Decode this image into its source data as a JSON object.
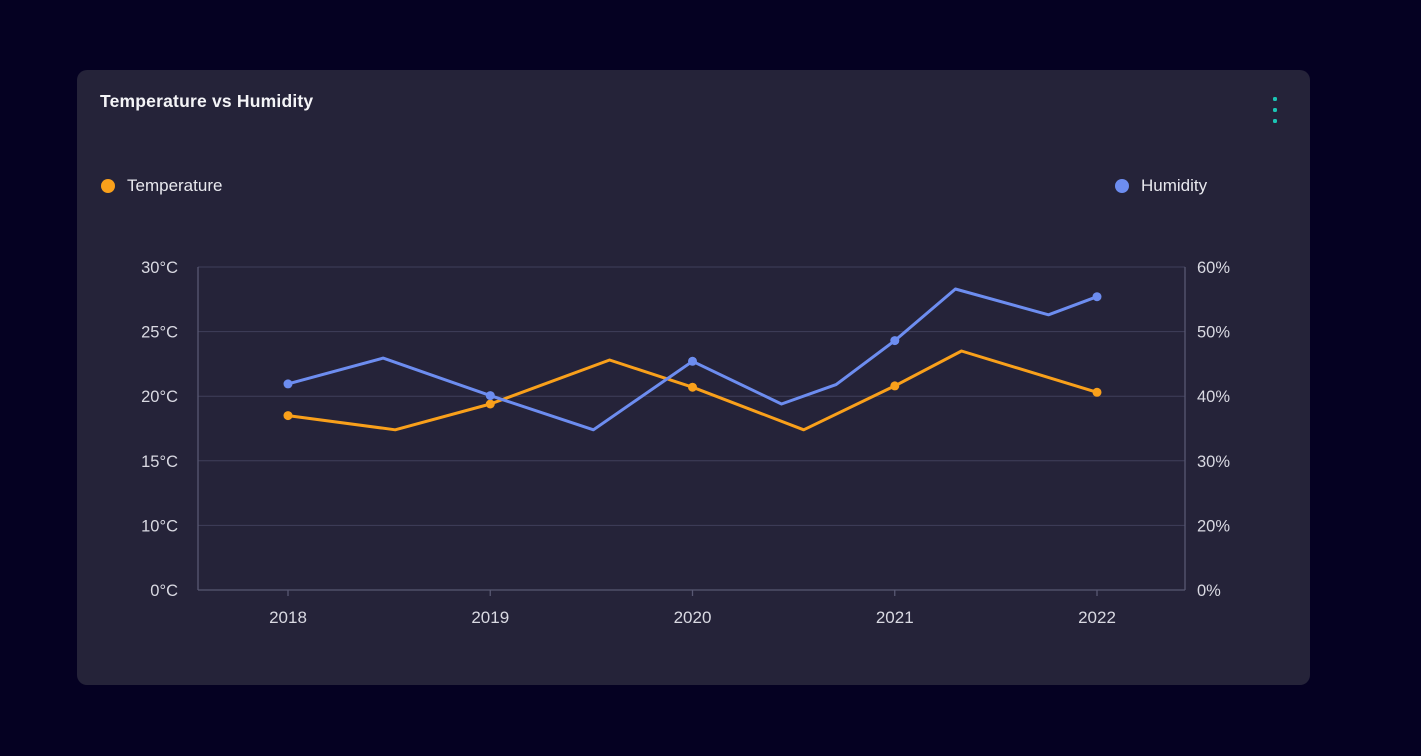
{
  "card": {
    "title": "Temperature vs Humidity",
    "menu_color": "#1BC5B4"
  },
  "legend": {
    "items": [
      {
        "label": "Temperature",
        "color": "#F9A01B"
      },
      {
        "label": "Humidity",
        "color": "#6D8DF0"
      }
    ]
  },
  "chart_data": {
    "type": "line",
    "title": "Temperature vs Humidity",
    "grid": true,
    "legend_position": "top",
    "x_axis": {
      "tick_labels": [
        "2018",
        "2019",
        "2020",
        "2021",
        "2022"
      ],
      "tick_values": [
        2018,
        2019,
        2020,
        2021,
        2022
      ]
    },
    "left_axis": {
      "label": "Temperature",
      "unit": "°C",
      "tick_labels": [
        "30°C",
        "25°C",
        "20°C",
        "15°C",
        "10°C",
        "0°C"
      ],
      "tick_values": [
        30,
        25,
        20,
        15,
        10,
        0
      ]
    },
    "right_axis": {
      "label": "Humidity",
      "unit": "%",
      "tick_labels": [
        "60%",
        "50%",
        "40%",
        "30%",
        "20%",
        "0%"
      ],
      "tick_values": [
        60,
        50,
        40,
        30,
        20,
        0
      ]
    },
    "series": [
      {
        "name": "Temperature",
        "axis": "left",
        "color": "#F9A01B",
        "points_format": [
          "year",
          "value",
          "marker_shown"
        ],
        "points": [
          [
            2018.0,
            18.5,
            true
          ],
          [
            2018.53,
            17.4,
            false
          ],
          [
            2019.0,
            19.4,
            true
          ],
          [
            2019.59,
            22.8,
            false
          ],
          [
            2020.0,
            20.7,
            true
          ],
          [
            2020.55,
            17.4,
            false
          ],
          [
            2021.0,
            20.8,
            true
          ],
          [
            2021.33,
            23.5,
            false
          ],
          [
            2022.0,
            20.3,
            true
          ]
        ]
      },
      {
        "name": "Humidity",
        "axis": "right",
        "color": "#6D8DF0",
        "points_format": [
          "year",
          "value",
          "marker_shown"
        ],
        "points": [
          [
            2018.0,
            41.9,
            true
          ],
          [
            2018.47,
            45.9,
            false
          ],
          [
            2019.0,
            40.1,
            true
          ],
          [
            2019.51,
            34.8,
            false
          ],
          [
            2020.0,
            45.4,
            true
          ],
          [
            2020.44,
            38.8,
            false
          ],
          [
            2020.71,
            41.8,
            false
          ],
          [
            2021.0,
            48.6,
            true
          ],
          [
            2021.3,
            56.6,
            false
          ],
          [
            2021.76,
            52.6,
            false
          ],
          [
            2022.0,
            55.4,
            true
          ]
        ]
      }
    ]
  }
}
